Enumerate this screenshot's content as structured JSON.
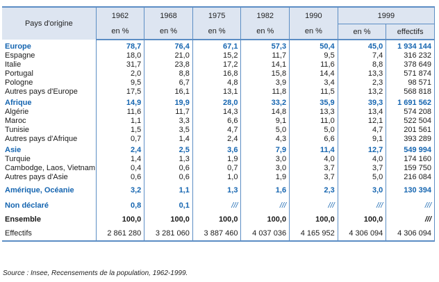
{
  "table": {
    "header": {
      "origin_label": "Pays d'origine",
      "years": [
        "1962",
        "1968",
        "1975",
        "1982",
        "1990",
        "1999"
      ],
      "unit_pct": "en %",
      "unit_count": "effectifs"
    },
    "groups": [
      {
        "name": "Europe",
        "values": [
          "78,7",
          "76,4",
          "67,1",
          "57,3",
          "50,4",
          "45,0",
          "1 934 144"
        ],
        "rows": [
          {
            "name": "Espagne",
            "values": [
              "18,0",
              "21,0",
              "15,2",
              "11,7",
              "9,5",
              "7,4",
              "316 232"
            ]
          },
          {
            "name": "Italie",
            "values": [
              "31,7",
              "23,8",
              "17,2",
              "14,1",
              "11,6",
              "8,8",
              "378 649"
            ]
          },
          {
            "name": "Portugal",
            "values": [
              "2,0",
              "8,8",
              "16,8",
              "15,8",
              "14,4",
              "13,3",
              "571 874"
            ]
          },
          {
            "name": "Pologne",
            "values": [
              "9,5",
              "6,7",
              "4,8",
              "3,9",
              "3,4",
              "2,3",
              "98 571"
            ]
          },
          {
            "name": "Autres pays d'Europe",
            "values": [
              "17,5",
              "16,1",
              "13,1",
              "11,8",
              "11,5",
              "13,2",
              "568 818"
            ]
          }
        ]
      },
      {
        "name": "Afrique",
        "values": [
          "14,9",
          "19,9",
          "28,0",
          "33,2",
          "35,9",
          "39,3",
          "1 691 562"
        ],
        "rows": [
          {
            "name": "Algérie",
            "values": [
              "11,6",
              "11,7",
              "14,3",
              "14,8",
              "13,3",
              "13,4",
              "574 208"
            ]
          },
          {
            "name": "Maroc",
            "values": [
              "1,1",
              "3,3",
              "6,6",
              "9,1",
              "11,0",
              "12,1",
              "522 504"
            ]
          },
          {
            "name": "Tunisie",
            "values": [
              "1,5",
              "3,5",
              "4,7",
              "5,0",
              "5,0",
              "4,7",
              "201 561"
            ]
          },
          {
            "name": "Autres pays d'Afrique",
            "values": [
              "0,7",
              "1,4",
              "2,4",
              "4,3",
              "6,6",
              "9,1",
              "393 289"
            ]
          }
        ]
      },
      {
        "name": "Asie",
        "values": [
          "2,4",
          "2,5",
          "3,6",
          "7,9",
          "11,4",
          "12,7",
          "549 994"
        ],
        "rows": [
          {
            "name": "Turquie",
            "values": [
              "1,4",
              "1,3",
              "1,9",
              "3,0",
              "4,0",
              "4,0",
              "174 160"
            ]
          },
          {
            "name": "Cambodge, Laos, Vietnam",
            "values": [
              "0,4",
              "0,6",
              "0,7",
              "3,0",
              "3,7",
              "3,7",
              "159 750"
            ]
          },
          {
            "name": "Autres pays d'Asie",
            "values": [
              "0,6",
              "0,6",
              "1,0",
              "1,9",
              "3,7",
              "5,0",
              "216 084"
            ]
          }
        ]
      },
      {
        "name": "Amérique, Océanie",
        "values": [
          "3,2",
          "1,1",
          "1,3",
          "1,6",
          "2,3",
          "3,0",
          "130 394"
        ],
        "rows": []
      },
      {
        "name": "Non déclaré",
        "values": [
          "0,8",
          "0,1",
          "///",
          "///",
          "///",
          "///",
          "///"
        ],
        "rows": []
      }
    ],
    "ensemble": {
      "name": "Ensemble",
      "values": [
        "100,0",
        "100,0",
        "100,0",
        "100,0",
        "100,0",
        "100,0",
        "///"
      ]
    },
    "effectifs": {
      "name": "Effectifs",
      "values": [
        "2 861 280",
        "3 281 060",
        "3 887 460",
        "4 037 036",
        "4 165 952",
        "4 306 094",
        "4 306 094"
      ]
    }
  },
  "source": "Source :  Insee, Recensements de la population, 1962-1999.",
  "colors": {
    "accent": "#1565b0",
    "border": "#5b8dc4",
    "header_bg": "#dde5f1"
  }
}
